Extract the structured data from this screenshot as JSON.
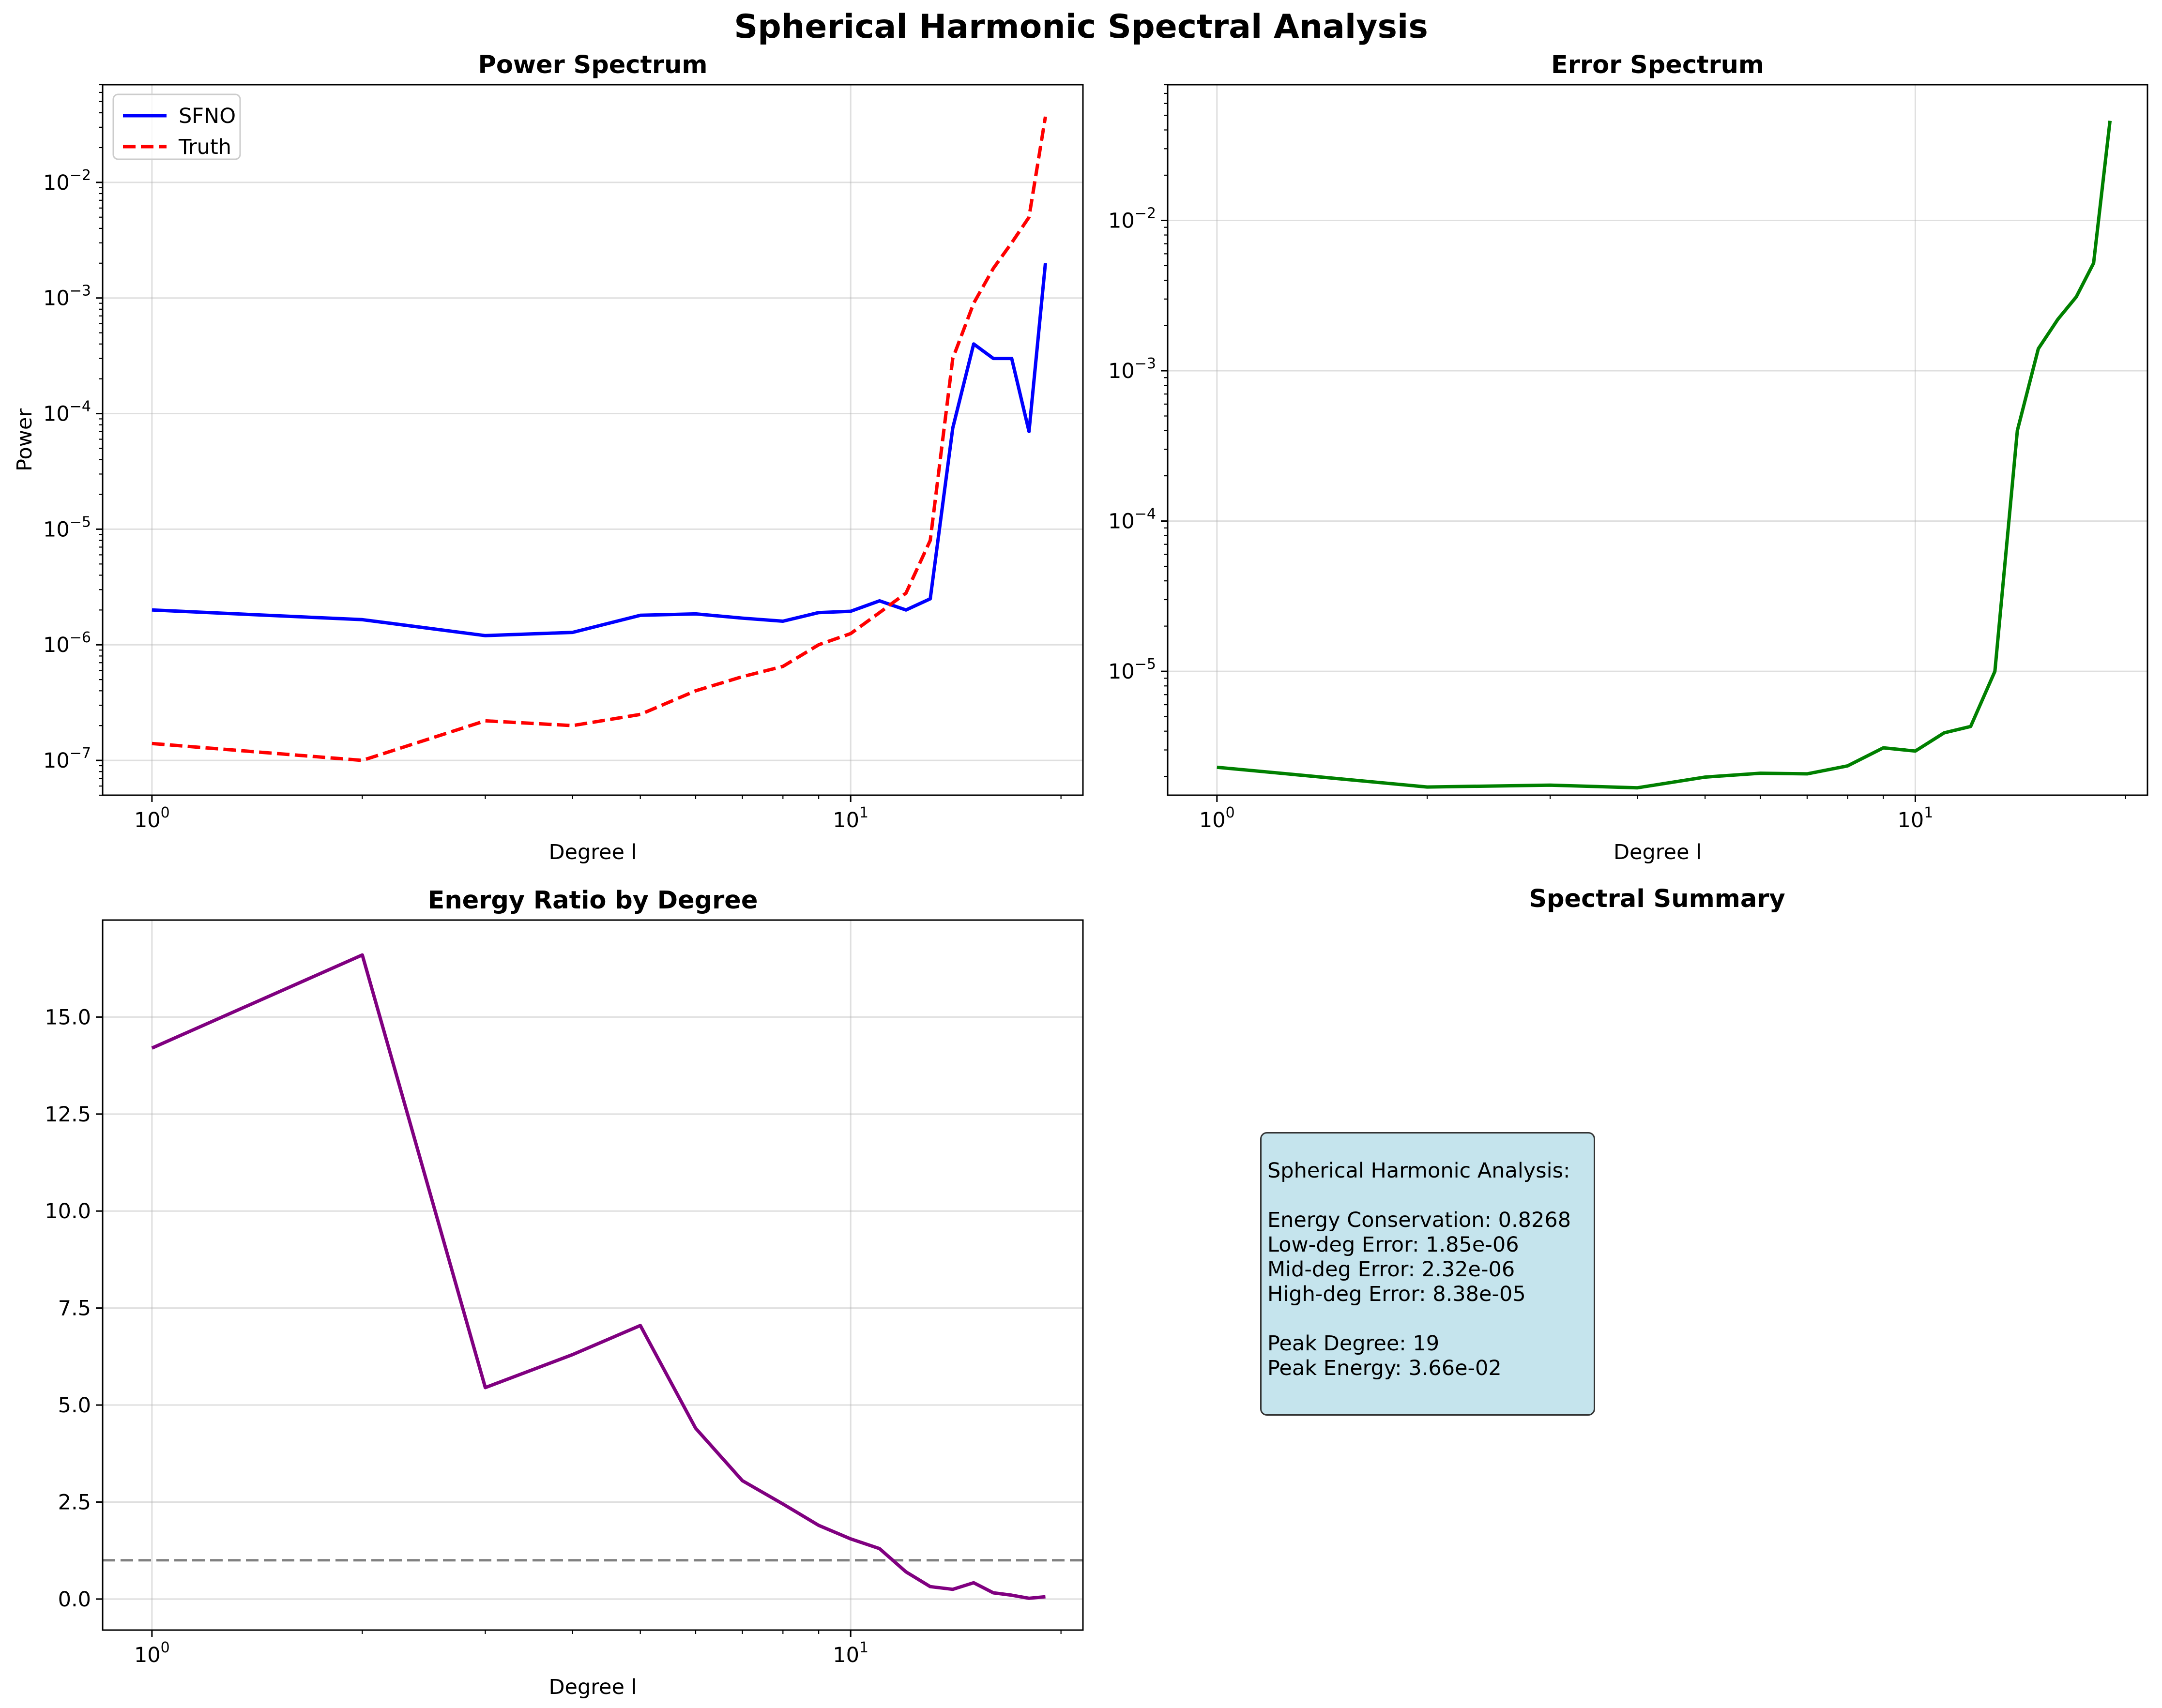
{
  "suptitle": "Spherical Harmonic Spectral Analysis",
  "chart_data": [
    {
      "id": "power",
      "type": "line",
      "title": "Power Spectrum",
      "xlabel": "Degree l",
      "ylabel": "Power",
      "xscale": "log",
      "yscale": "log",
      "xlim": [
        0.85,
        21.5
      ],
      "ylim": [
        5e-08,
        0.07
      ],
      "grid": true,
      "legend": "upper-left",
      "xticks": [
        {
          "v": 1,
          "base": "10",
          "exp": "0"
        },
        {
          "v": 10,
          "base": "10",
          "exp": "1"
        }
      ],
      "yticks": [
        {
          "v": 1e-07,
          "base": "10",
          "exp": "−7"
        },
        {
          "v": 1e-06,
          "base": "10",
          "exp": "−6"
        },
        {
          "v": 1e-05,
          "base": "10",
          "exp": "−5"
        },
        {
          "v": 0.0001,
          "base": "10",
          "exp": "−4"
        },
        {
          "v": 0.001,
          "base": "10",
          "exp": "−3"
        },
        {
          "v": 0.01,
          "base": "10",
          "exp": "−2"
        }
      ],
      "x": [
        1,
        2,
        3,
        4,
        5,
        6,
        7,
        8,
        9,
        10,
        11,
        12,
        13,
        14,
        15,
        16,
        17,
        18,
        19
      ],
      "series": [
        {
          "name": "SFNO",
          "color": "#0000ff",
          "dash": "solid",
          "values": [
            2e-06,
            1.65e-06,
            1.2e-06,
            1.28e-06,
            1.8e-06,
            1.85e-06,
            1.7e-06,
            1.6e-06,
            1.9e-06,
            1.95e-06,
            2.4e-06,
            2e-06,
            2.5e-06,
            7.5e-05,
            0.0004,
            0.0003,
            0.0003,
            7e-05,
            0.002
          ]
        },
        {
          "name": "Truth",
          "color": "#ff0000",
          "dash": "dashed",
          "values": [
            1.4e-07,
            1e-07,
            2.2e-07,
            2e-07,
            2.5e-07,
            4e-07,
            5.3e-07,
            6.5e-07,
            1e-06,
            1.25e-06,
            1.9e-06,
            2.8e-06,
            8e-06,
            0.0003,
            0.0009,
            0.0018,
            0.003,
            0.005,
            0.037
          ]
        }
      ]
    },
    {
      "id": "error",
      "type": "line",
      "title": "Error Spectrum",
      "xlabel": "Degree l",
      "ylabel": "",
      "xscale": "log",
      "yscale": "log",
      "xlim": [
        0.85,
        21.5
      ],
      "ylim": [
        1.5e-06,
        0.08
      ],
      "grid": true,
      "xticks": [
        {
          "v": 1,
          "base": "10",
          "exp": "0"
        },
        {
          "v": 10,
          "base": "10",
          "exp": "1"
        }
      ],
      "yticks": [
        {
          "v": 1e-05,
          "base": "10",
          "exp": "−5"
        },
        {
          "v": 0.0001,
          "base": "10",
          "exp": "−4"
        },
        {
          "v": 0.001,
          "base": "10",
          "exp": "−3"
        },
        {
          "v": 0.01,
          "base": "10",
          "exp": "−2"
        }
      ],
      "x": [
        1,
        2,
        3,
        4,
        5,
        6,
        7,
        8,
        9,
        10,
        11,
        12,
        13,
        14,
        15,
        16,
        17,
        18,
        19
      ],
      "series": [
        {
          "color": "#008000",
          "dash": "solid",
          "values": [
            2.3e-06,
            1.7e-06,
            1.75e-06,
            1.68e-06,
            1.98e-06,
            2.1e-06,
            2.08e-06,
            2.35e-06,
            3.1e-06,
            2.95e-06,
            3.9e-06,
            4.3e-06,
            1e-05,
            0.0004,
            0.0014,
            0.0022,
            0.0031,
            0.0052,
            0.046
          ]
        }
      ]
    },
    {
      "id": "ratio",
      "type": "line",
      "title": "Energy Ratio by Degree",
      "xlabel": "Degree l",
      "ylabel": "",
      "xscale": "log",
      "yscale": "linear",
      "xlim": [
        0.85,
        21.5
      ],
      "ylim": [
        -0.8,
        17.5
      ],
      "grid": true,
      "xticks": [
        {
          "v": 1,
          "base": "10",
          "exp": "0"
        },
        {
          "v": 10,
          "base": "10",
          "exp": "1"
        }
      ],
      "yticks": [
        {
          "v": 0,
          "label": "0.0"
        },
        {
          "v": 2.5,
          "label": "2.5"
        },
        {
          "v": 5,
          "label": "5.0"
        },
        {
          "v": 7.5,
          "label": "7.5"
        },
        {
          "v": 10,
          "label": "10.0"
        },
        {
          "v": 12.5,
          "label": "12.5"
        },
        {
          "v": 15,
          "label": "15.0"
        }
      ],
      "hline": {
        "y": 1.0,
        "color": "#808080",
        "dash": "dashed"
      },
      "x": [
        1,
        2,
        3,
        4,
        5,
        6,
        7,
        8,
        9,
        10,
        11,
        12,
        13,
        14,
        15,
        16,
        17,
        18,
        19
      ],
      "series": [
        {
          "color": "#800080",
          "dash": "solid",
          "values": [
            14.2,
            16.6,
            5.45,
            6.3,
            7.05,
            4.4,
            3.05,
            2.45,
            1.9,
            1.55,
            1.3,
            0.7,
            0.32,
            0.25,
            0.42,
            0.16,
            0.1,
            0.02,
            0.06
          ]
        }
      ]
    }
  ],
  "summary": {
    "title": "Spectral Summary",
    "heading": "Spherical Harmonic Analysis:",
    "lines_a": [
      "Energy Conservation: 0.8268",
      "Low-deg Error: 1.85e-06",
      "Mid-deg Error: 2.32e-06",
      "High-deg Error: 8.38e-05"
    ],
    "lines_b": [
      "Peak Degree: 19",
      "Peak Energy: 3.66e-02"
    ]
  }
}
